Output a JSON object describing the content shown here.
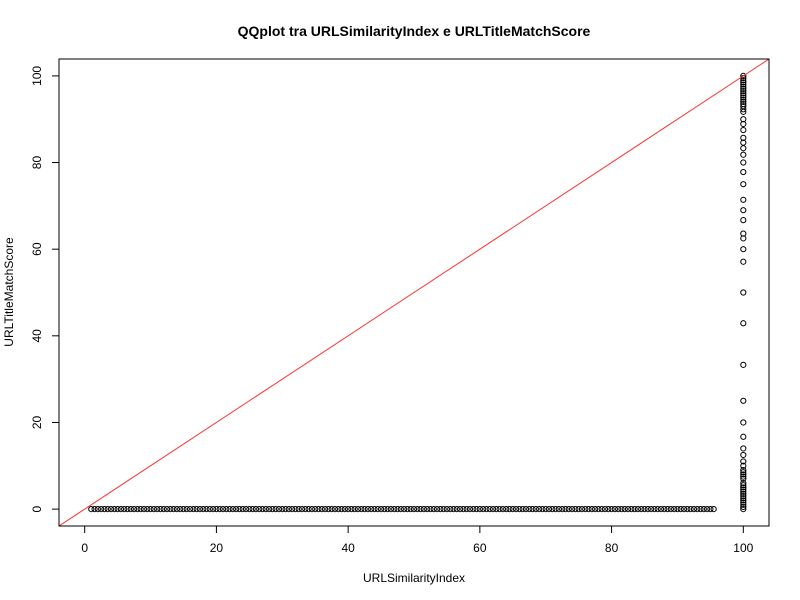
{
  "chart_data": {
    "type": "scatter",
    "title": "QQplot tra URLSimilarityIndex e URLTitleMatchScore",
    "xlabel": "URLSimilarityIndex",
    "ylabel": "URLTitleMatchScore",
    "xlim": [
      -3.9,
      103.9
    ],
    "ylim": [
      -3.9,
      103.9
    ],
    "x_ticks": [
      0,
      20,
      40,
      60,
      80,
      100
    ],
    "y_ticks": [
      0,
      20,
      40,
      60,
      80,
      100
    ],
    "x_tick_labels": [
      "0",
      "20",
      "40",
      "60",
      "80",
      "100"
    ],
    "y_tick_labels": [
      "0",
      "20",
      "40",
      "60",
      "80",
      "100"
    ],
    "grid": false,
    "legend": "none",
    "point_color": "#000000",
    "reference_line": {
      "from": [
        -3.9,
        -3.9
      ],
      "to": [
        103.9,
        103.9
      ],
      "color": "#ff3030"
    },
    "series": [
      {
        "bottom_band": {
          "y": 0,
          "x_from": 1,
          "x_to": 95.5,
          "step": 0.5
        },
        "right_column": {
          "x": 100,
          "y_values": [
            0,
            0.5,
            1,
            1.5,
            2,
            2.5,
            3,
            3.5,
            4,
            4.5,
            5,
            5.5,
            6,
            7,
            7.5,
            8,
            8.5,
            9,
            10,
            11,
            12.5,
            14,
            16.7,
            20,
            25,
            33.3,
            42.9,
            50,
            57.1,
            60,
            62.5,
            63.6,
            66.7,
            69,
            71.4,
            75,
            77.8,
            80,
            81.8,
            83.3,
            84.6,
            85.7,
            87.5,
            88.9,
            90,
            91.7,
            92.3,
            93,
            93.5,
            94,
            94.5,
            95,
            95.5,
            96,
            96.5,
            97,
            97.5,
            98,
            98.5,
            99,
            99.5,
            100
          ]
        }
      }
    ]
  }
}
